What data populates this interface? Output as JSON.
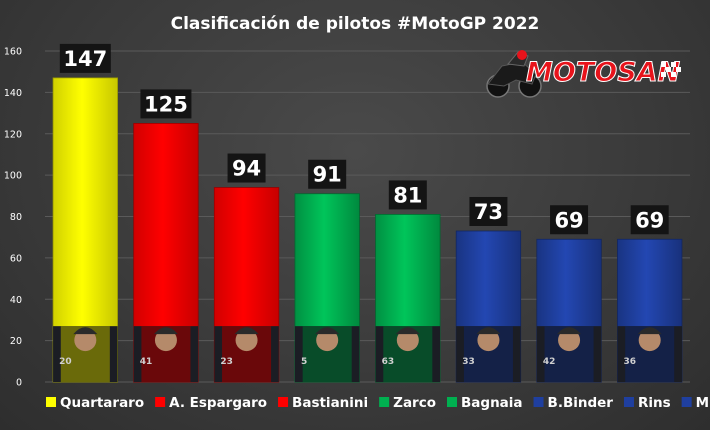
{
  "chart_data": {
    "type": "bar",
    "title": "Clasificación de pilotos #MotoGP 2022",
    "categories": [
      "Quartararo",
      "A. Espargaro",
      "Bastianini",
      "Zarco",
      "Bagnaia",
      "B.Binder",
      "Rins",
      "Mir"
    ],
    "values": [
      147,
      125,
      94,
      91,
      81,
      73,
      69,
      69
    ],
    "colors": [
      "#ffff00",
      "#ff0000",
      "#ff0000",
      "#00b050",
      "#00b050",
      "#1f3f9f",
      "#1f3f9f",
      "#1f3f9f"
    ],
    "rider_numbers": [
      "20",
      "41",
      "23",
      "5",
      "63",
      "33",
      "42",
      "36"
    ],
    "ylim": [
      0,
      160
    ],
    "yticks": [
      0,
      20,
      40,
      60,
      80,
      100,
      120,
      140,
      160
    ],
    "grid": true,
    "legend_position": "bottom",
    "xlabel": "",
    "ylabel": ""
  },
  "brand": {
    "name": "MOTOSAN",
    "icon": "motorcycle-rider-icon",
    "colors": {
      "text": "#e8131b",
      "outline": "#ffffff"
    }
  }
}
